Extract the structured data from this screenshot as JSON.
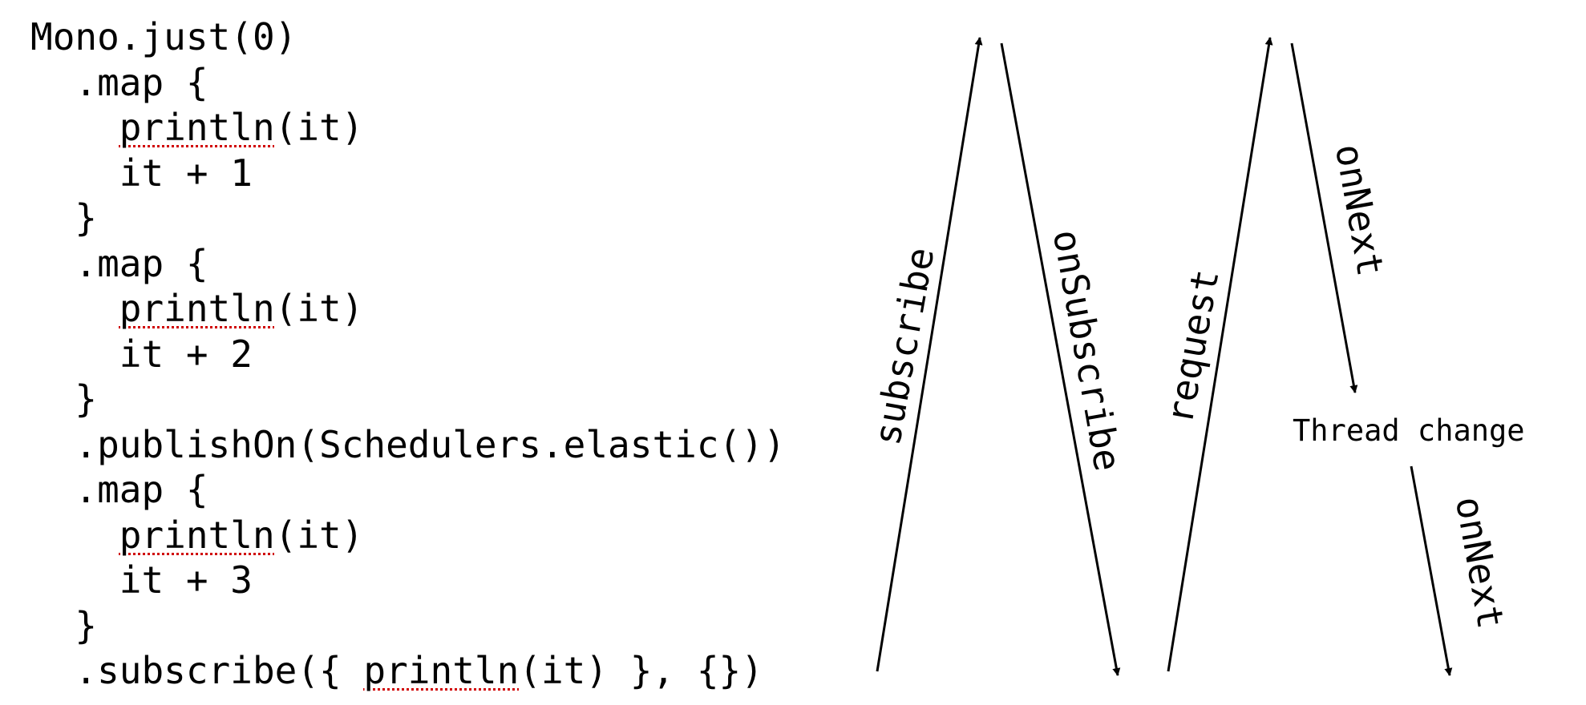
{
  "code": {
    "lines": [
      {
        "indent": "",
        "pre": "Mono.just(0)",
        "fn": "",
        "post": ""
      },
      {
        "indent": "  ",
        "pre": ".map {",
        "fn": "",
        "post": ""
      },
      {
        "indent": "    ",
        "pre": "",
        "fn": "println",
        "post": "(it)"
      },
      {
        "indent": "    ",
        "pre": "it + 1",
        "fn": "",
        "post": ""
      },
      {
        "indent": "  ",
        "pre": "}",
        "fn": "",
        "post": ""
      },
      {
        "indent": "  ",
        "pre": ".map {",
        "fn": "",
        "post": ""
      },
      {
        "indent": "    ",
        "pre": "",
        "fn": "println",
        "post": "(it)"
      },
      {
        "indent": "    ",
        "pre": "it + 2",
        "fn": "",
        "post": ""
      },
      {
        "indent": "  ",
        "pre": "}",
        "fn": "",
        "post": ""
      },
      {
        "indent": "  ",
        "pre": ".publishOn(Schedulers.elastic())",
        "fn": "",
        "post": ""
      },
      {
        "indent": "  ",
        "pre": ".map {",
        "fn": "",
        "post": ""
      },
      {
        "indent": "    ",
        "pre": "",
        "fn": "println",
        "post": "(it)"
      },
      {
        "indent": "    ",
        "pre": "it + 3",
        "fn": "",
        "post": ""
      },
      {
        "indent": "  ",
        "pre": "}",
        "fn": "",
        "post": ""
      },
      {
        "indent": "  ",
        "pre": ".subscribe({ ",
        "fn": "println",
        "post": "(it) }, {})"
      }
    ]
  },
  "flow": {
    "subscribe": "subscribe",
    "on_subscribe": "onSubscribe",
    "request": "request",
    "on_next_before": "onNext",
    "thread_change": "Thread change",
    "on_next_after": "onNext"
  },
  "colors": {
    "ink": "#000000",
    "spell_underline": "#d00000"
  }
}
